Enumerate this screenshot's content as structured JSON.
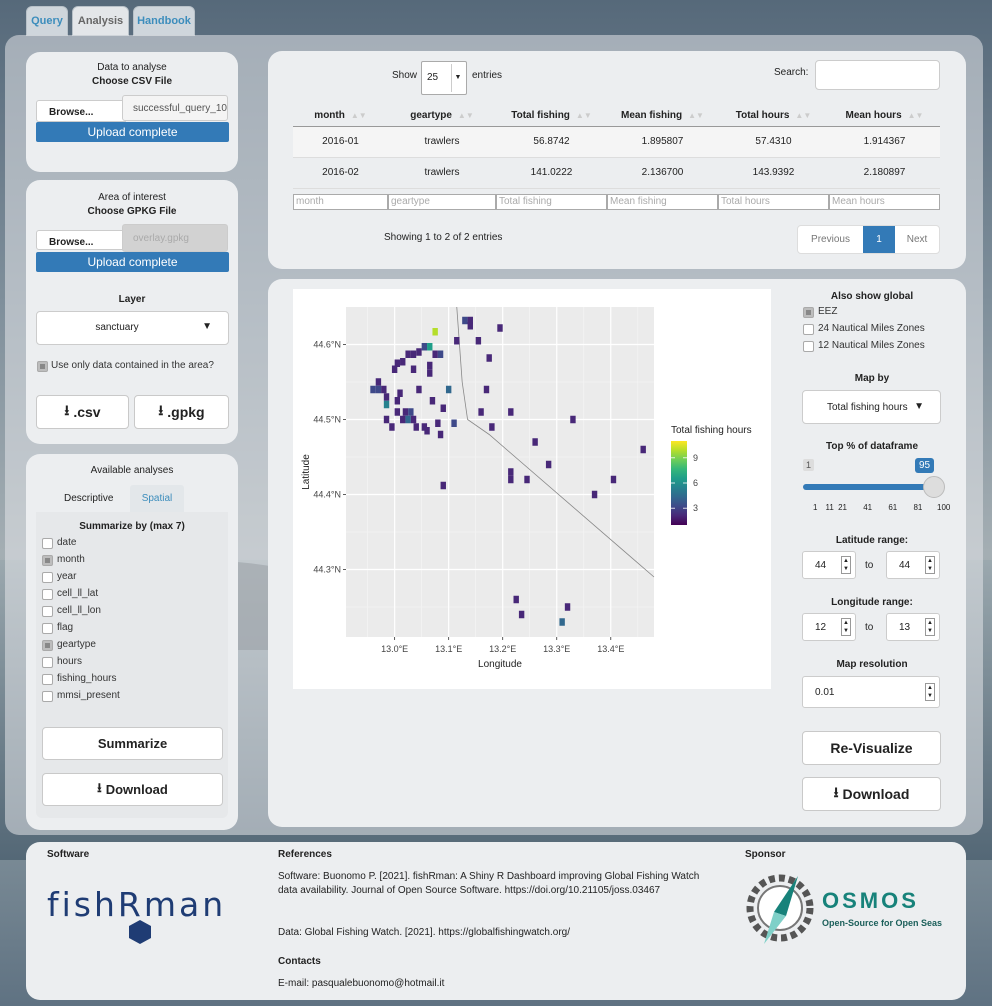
{
  "tabs": [
    "Query",
    "Analysis",
    "Handbook"
  ],
  "sidebar": {
    "data_title": "Data to analyse",
    "csv_label": "Choose CSV File",
    "browse_label": "Browse...",
    "csv_filename": "successful_query_10",
    "upload_status": "Upload complete",
    "area_title": "Area of interest",
    "gpkg_label": "Choose GPKG File",
    "gpkg_filename": "overlay.gpkg",
    "layer_label": "Layer",
    "layer_value": "sanctuary",
    "use_area_label": "Use only data contained in the area?",
    "csv_button": ".csv",
    "gpkg_button": ".gpkg"
  },
  "analyses": {
    "title": "Available analyses",
    "tabs": [
      "Descriptive",
      "Spatial"
    ],
    "summarize_label": "Summarize by (max 7)",
    "fields": [
      {
        "label": "date",
        "checked": false
      },
      {
        "label": "month",
        "checked": true
      },
      {
        "label": "year",
        "checked": false
      },
      {
        "label": "cell_ll_lat",
        "checked": false
      },
      {
        "label": "cell_ll_lon",
        "checked": false
      },
      {
        "label": "flag",
        "checked": false
      },
      {
        "label": "geartype",
        "checked": true
      },
      {
        "label": "hours",
        "checked": false
      },
      {
        "label": "fishing_hours",
        "checked": false
      },
      {
        "label": "mmsi_present",
        "checked": false
      }
    ],
    "summarize_button": "Summarize",
    "download_button": "Download"
  },
  "table": {
    "show_label": "Show",
    "entries_value": "25",
    "entries_label": "entries",
    "search_label": "Search:",
    "columns": [
      "month",
      "geartype",
      "Total fishing",
      "Mean fishing",
      "Total hours",
      "Mean hours"
    ],
    "rows": [
      [
        "2016-01",
        "trawlers",
        "56.8742",
        "1.895807",
        "57.4310",
        "1.914367"
      ],
      [
        "2016-02",
        "trawlers",
        "141.0222",
        "2.136700",
        "143.9392",
        "2.180897"
      ]
    ],
    "info": "Showing 1 to 2 of 2 entries",
    "prev": "Previous",
    "page": "1",
    "next": "Next"
  },
  "map": {
    "xlabel": "Longitude",
    "ylabel": "Latitude",
    "x_ticks": [
      "13.0°E",
      "13.1°E",
      "13.2°E",
      "13.3°E",
      "13.4°E"
    ],
    "y_ticks": [
      "44.6°N",
      "44.5°N",
      "44.4°N",
      "44.3°N"
    ],
    "legend_title": "Total fishing hours",
    "legend_ticks": [
      "9",
      "6",
      "3"
    ]
  },
  "chart_data": {
    "type": "heatmap",
    "xlabel": "Longitude",
    "ylabel": "Latitude",
    "xlim": [
      12.91,
      13.48
    ],
    "ylim": [
      44.21,
      44.65
    ],
    "color_scale": "viridis",
    "color_range": [
      1,
      11
    ],
    "cells": [
      {
        "x": 13.13,
        "y": 44.632,
        "v": 3
      },
      {
        "x": 13.14,
        "y": 44.632,
        "v": 2
      },
      {
        "x": 13.075,
        "y": 44.617,
        "v": 10
      },
      {
        "x": 13.14,
        "y": 44.625,
        "v": 2
      },
      {
        "x": 13.195,
        "y": 44.622,
        "v": 2
      },
      {
        "x": 13.055,
        "y": 44.597,
        "v": 3
      },
      {
        "x": 13.065,
        "y": 44.597,
        "v": 6
      },
      {
        "x": 13.115,
        "y": 44.605,
        "v": 2
      },
      {
        "x": 13.155,
        "y": 44.605,
        "v": 2
      },
      {
        "x": 13.025,
        "y": 44.587,
        "v": 2
      },
      {
        "x": 13.035,
        "y": 44.587,
        "v": 2
      },
      {
        "x": 13.045,
        "y": 44.59,
        "v": 2
      },
      {
        "x": 13.075,
        "y": 44.587,
        "v": 2
      },
      {
        "x": 13.085,
        "y": 44.587,
        "v": 3
      },
      {
        "x": 13.175,
        "y": 44.582,
        "v": 2
      },
      {
        "x": 13.005,
        "y": 44.575,
        "v": 2
      },
      {
        "x": 13.015,
        "y": 44.577,
        "v": 2
      },
      {
        "x": 13.065,
        "y": 44.572,
        "v": 2
      },
      {
        "x": 13.0,
        "y": 44.567,
        "v": 2
      },
      {
        "x": 13.035,
        "y": 44.567,
        "v": 2
      },
      {
        "x": 13.065,
        "y": 44.562,
        "v": 2
      },
      {
        "x": 12.97,
        "y": 44.55,
        "v": 2
      },
      {
        "x": 12.96,
        "y": 44.54,
        "v": 3
      },
      {
        "x": 12.97,
        "y": 44.54,
        "v": 3
      },
      {
        "x": 12.98,
        "y": 44.54,
        "v": 2
      },
      {
        "x": 12.985,
        "y": 44.53,
        "v": 2
      },
      {
        "x": 12.985,
        "y": 44.52,
        "v": 5
      },
      {
        "x": 13.01,
        "y": 44.535,
        "v": 2
      },
      {
        "x": 13.045,
        "y": 44.54,
        "v": 2
      },
      {
        "x": 13.1,
        "y": 44.54,
        "v": 4
      },
      {
        "x": 13.17,
        "y": 44.54,
        "v": 2
      },
      {
        "x": 13.005,
        "y": 44.525,
        "v": 2
      },
      {
        "x": 13.07,
        "y": 44.525,
        "v": 2
      },
      {
        "x": 13.09,
        "y": 44.515,
        "v": 2
      },
      {
        "x": 13.02,
        "y": 44.51,
        "v": 2
      },
      {
        "x": 13.03,
        "y": 44.51,
        "v": 3
      },
      {
        "x": 13.005,
        "y": 44.51,
        "v": 2
      },
      {
        "x": 13.015,
        "y": 44.5,
        "v": 2
      },
      {
        "x": 13.025,
        "y": 44.5,
        "v": 4
      },
      {
        "x": 13.035,
        "y": 44.5,
        "v": 2
      },
      {
        "x": 13.16,
        "y": 44.51,
        "v": 2
      },
      {
        "x": 13.215,
        "y": 44.51,
        "v": 2
      },
      {
        "x": 12.985,
        "y": 44.5,
        "v": 2
      },
      {
        "x": 13.04,
        "y": 44.49,
        "v": 2
      },
      {
        "x": 13.055,
        "y": 44.49,
        "v": 2
      },
      {
        "x": 12.995,
        "y": 44.49,
        "v": 2
      },
      {
        "x": 13.08,
        "y": 44.495,
        "v": 2
      },
      {
        "x": 13.11,
        "y": 44.495,
        "v": 3
      },
      {
        "x": 13.33,
        "y": 44.5,
        "v": 2
      },
      {
        "x": 13.06,
        "y": 44.485,
        "v": 2
      },
      {
        "x": 13.18,
        "y": 44.49,
        "v": 2
      },
      {
        "x": 13.085,
        "y": 44.48,
        "v": 2
      },
      {
        "x": 13.26,
        "y": 44.47,
        "v": 2
      },
      {
        "x": 13.46,
        "y": 44.46,
        "v": 2
      },
      {
        "x": 13.285,
        "y": 44.44,
        "v": 2
      },
      {
        "x": 13.215,
        "y": 44.43,
        "v": 2
      },
      {
        "x": 13.215,
        "y": 44.42,
        "v": 2
      },
      {
        "x": 13.245,
        "y": 44.42,
        "v": 2
      },
      {
        "x": 13.405,
        "y": 44.42,
        "v": 2
      },
      {
        "x": 13.09,
        "y": 44.412,
        "v": 2
      },
      {
        "x": 13.37,
        "y": 44.4,
        "v": 2
      },
      {
        "x": 13.225,
        "y": 44.26,
        "v": 2
      },
      {
        "x": 13.32,
        "y": 44.25,
        "v": 2
      },
      {
        "x": 13.235,
        "y": 44.24,
        "v": 2
      },
      {
        "x": 13.31,
        "y": 44.23,
        "v": 4
      }
    ]
  },
  "right_controls": {
    "also_show_label": "Also show global",
    "overlays": [
      {
        "label": "EEZ",
        "checked": true
      },
      {
        "label": "24 Nautical Miles Zones",
        "checked": false
      },
      {
        "label": "12 Nautical Miles Zones",
        "checked": false
      }
    ],
    "map_by_label": "Map by",
    "map_by_value": "Total fishing hours",
    "top_pct_label": "Top % of dataframe",
    "slider_min": "1",
    "slider_value": "95",
    "slider_ticks": [
      "1",
      "11",
      "21",
      "41",
      "61",
      "81",
      "100"
    ],
    "slider_fraction": 0.95,
    "lat_range_label": "Latitude range:",
    "lat_from": "44",
    "lat_to": "44",
    "lon_range_label": "Longitude range:",
    "lon_from": "12",
    "lon_to": "13",
    "to_label": "to",
    "resolution_label": "Map resolution",
    "resolution_value": "0.01",
    "revisualize_button": "Re-Visualize",
    "download_button": "Download"
  },
  "footer": {
    "software_title": "Software",
    "logo_text": "fishRman",
    "references_title": "References",
    "ref_software": "Software: Buonomo P. [2021]. fishRman: A Shiny R Dashboard improving Global Fishing Watch data availability. Journal of Open Source Software. https://doi.org/10.21105/joss.03467",
    "ref_data": "Data: Global Fishing Watch. [2021]. https://globalfishingwatch.org/",
    "contacts_title": "Contacts",
    "email": "E-mail: pasqualebuonomo@hotmail.it",
    "sponsor_title": "Sponsor",
    "sponsor_name": "OSMOS",
    "sponsor_tagline": "Open-Source for Open Seas"
  },
  "colors": {
    "primary": "#337ab7",
    "accent_blue": "#3c8dbc",
    "panel": "#eceef0",
    "osmos_teal": "#17827a"
  }
}
